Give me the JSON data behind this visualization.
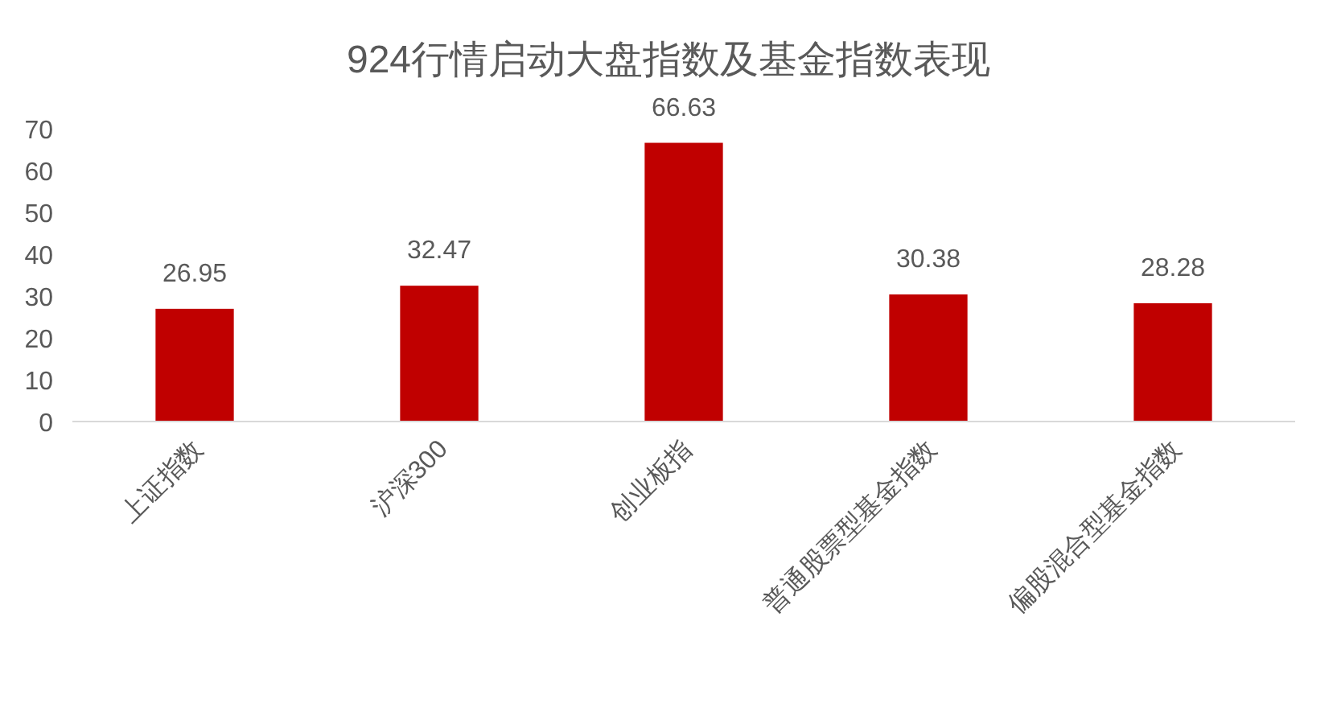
{
  "chart_data": {
    "type": "bar",
    "title": "924行情启动大盘指数及基金指数表现",
    "categories": [
      "上证指数",
      "沪深300",
      "创业板指",
      "普通股票型基金指数",
      "偏股混合型基金指数"
    ],
    "values": [
      26.95,
      32.47,
      66.63,
      30.38,
      28.28
    ],
    "color": "#c00000",
    "ylim": [
      0,
      70
    ],
    "yticks": [
      0,
      10,
      20,
      30,
      40,
      50,
      60,
      70
    ],
    "data_labels": true
  }
}
